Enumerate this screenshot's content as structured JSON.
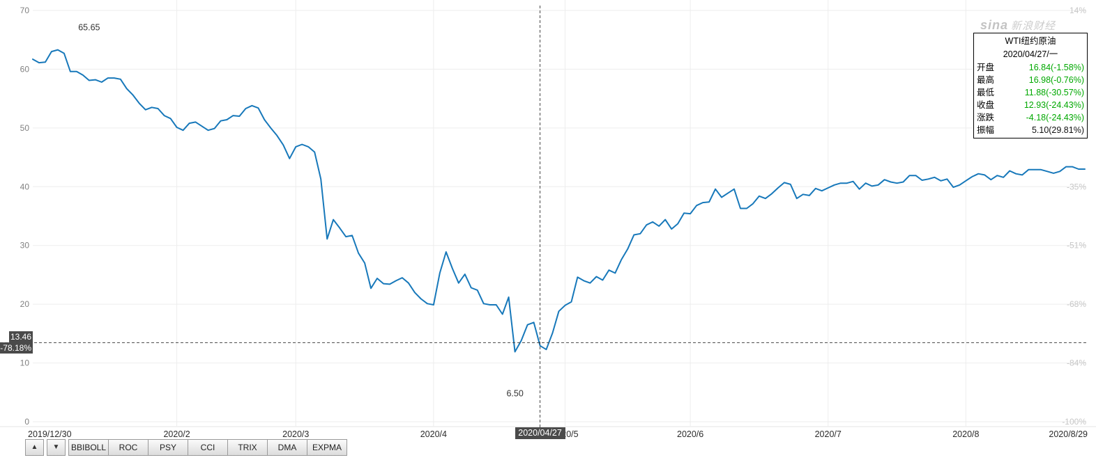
{
  "watermark": {
    "brand": "sina",
    "suffix": "新浪财经"
  },
  "info_panel": {
    "title": "WTI纽约原油",
    "date": "2020/04/27/一",
    "rows": [
      {
        "label": "开盘",
        "value": "16.84(-1.58%)",
        "color": "green"
      },
      {
        "label": "最高",
        "value": "16.98(-0.76%)",
        "color": "green"
      },
      {
        "label": "最低",
        "value": "11.88(-30.57%)",
        "color": "green"
      },
      {
        "label": "收盘",
        "value": "12.93(-24.43%)",
        "color": "green"
      },
      {
        "label": "涨跌",
        "value": "-4.18(-24.43%)",
        "color": "green"
      },
      {
        "label": "振幅",
        "value": "5.10(29.81%)",
        "color": "black"
      }
    ]
  },
  "crosshair": {
    "index": 81,
    "value": 13.46,
    "price_label": "13.46",
    "percent_label": "-78.18%",
    "date_label": "2020/04/27"
  },
  "annotations": [
    {
      "text": "65.65",
      "index": 9,
      "value": 66.6
    },
    {
      "text": "6.50",
      "index": 77,
      "value": 4.3
    }
  ],
  "toolbar": {
    "up": "▲",
    "down": "▼",
    "buttons": [
      "BBIBOLL",
      "ROC",
      "PSY",
      "CCI",
      "TRIX",
      "DMA",
      "EXPMA"
    ]
  },
  "colors": {
    "line": "#1778ba",
    "grid": "#ededed",
    "axis_left_text": "#808080",
    "axis_right_text": "#c6c6c6",
    "date_text": "#2b2b2b",
    "crosshair": "#444444",
    "badge_bg": "#4a4a4a",
    "value_green": "#00a800"
  },
  "chart_data": {
    "type": "line",
    "title": "WTI纽约原油",
    "xlabel": "",
    "ylabel": "",
    "ylim": [
      0,
      70
    ],
    "grid": true,
    "y_ticks_left": [
      0,
      10,
      20,
      30,
      40,
      50,
      60,
      70
    ],
    "y_ticks_right": [
      {
        "label": "14%",
        "value": 70
      },
      {
        "label": "-35%",
        "value": 40
      },
      {
        "label": "-51%",
        "value": 30
      },
      {
        "label": "-68%",
        "value": 20
      },
      {
        "label": "-84%",
        "value": 10
      },
      {
        "label": "-100%",
        "value": 0
      }
    ],
    "x_first_label": "2019/12/30",
    "x_last_label": "2020/8/29",
    "x_month_ticks": [
      {
        "label": "2020/2",
        "index": 23
      },
      {
        "label": "2020/3",
        "index": 42
      },
      {
        "label": "2020/4",
        "index": 64
      },
      {
        "label": "2020/5",
        "index": 85
      },
      {
        "label": "2020/6",
        "index": 105
      },
      {
        "label": "2020/7",
        "index": 127
      },
      {
        "label": "2020/8",
        "index": 149
      }
    ],
    "series": [
      {
        "name": "收盘价",
        "values": [
          61.7,
          61.1,
          61.2,
          63.0,
          63.3,
          62.7,
          59.6,
          59.6,
          59.0,
          58.1,
          58.2,
          57.8,
          58.5,
          58.5,
          58.3,
          56.7,
          55.6,
          54.2,
          53.1,
          53.5,
          53.3,
          52.1,
          51.6,
          50.1,
          49.6,
          50.8,
          51.0,
          50.3,
          49.6,
          49.9,
          51.2,
          51.4,
          52.1,
          52.0,
          53.3,
          53.8,
          53.4,
          51.4,
          50.0,
          48.7,
          47.1,
          44.8,
          46.8,
          47.2,
          46.8,
          45.9,
          41.3,
          31.1,
          34.4,
          33.0,
          31.5,
          31.7,
          28.7,
          27.0,
          22.7,
          24.4,
          23.5,
          23.4,
          24.0,
          24.5,
          23.6,
          22.0,
          20.9,
          20.1,
          19.9,
          25.3,
          28.9,
          26.1,
          23.6,
          25.1,
          22.8,
          22.4,
          20.1,
          19.9,
          19.9,
          18.3,
          21.2,
          11.9,
          13.8,
          16.5,
          16.9,
          12.93,
          12.3,
          15.1,
          18.8,
          19.8,
          20.4,
          24.6,
          24.0,
          23.6,
          24.7,
          24.1,
          25.8,
          25.3,
          27.6,
          29.4,
          31.8,
          32.0,
          33.5,
          34.0,
          33.3,
          34.4,
          32.8,
          33.7,
          35.5,
          35.4,
          36.8,
          37.3,
          37.4,
          39.6,
          38.2,
          38.9,
          39.6,
          36.3,
          36.3,
          37.1,
          38.4,
          38.0,
          38.8,
          39.8,
          40.7,
          40.4,
          38.0,
          38.7,
          38.5,
          39.7,
          39.3,
          39.8,
          40.3,
          40.6,
          40.6,
          40.9,
          39.6,
          40.6,
          40.1,
          40.3,
          41.2,
          40.8,
          40.6,
          40.8,
          41.9,
          41.9,
          41.1,
          41.3,
          41.6,
          41.0,
          41.3,
          39.9,
          40.3,
          41.0,
          41.7,
          42.2,
          42.0,
          41.2,
          41.9,
          41.6,
          42.7,
          42.2,
          42.0,
          42.9,
          42.9,
          42.9,
          42.6,
          42.3,
          42.6,
          43.4,
          43.4,
          43.0,
          43.0
        ]
      }
    ]
  }
}
